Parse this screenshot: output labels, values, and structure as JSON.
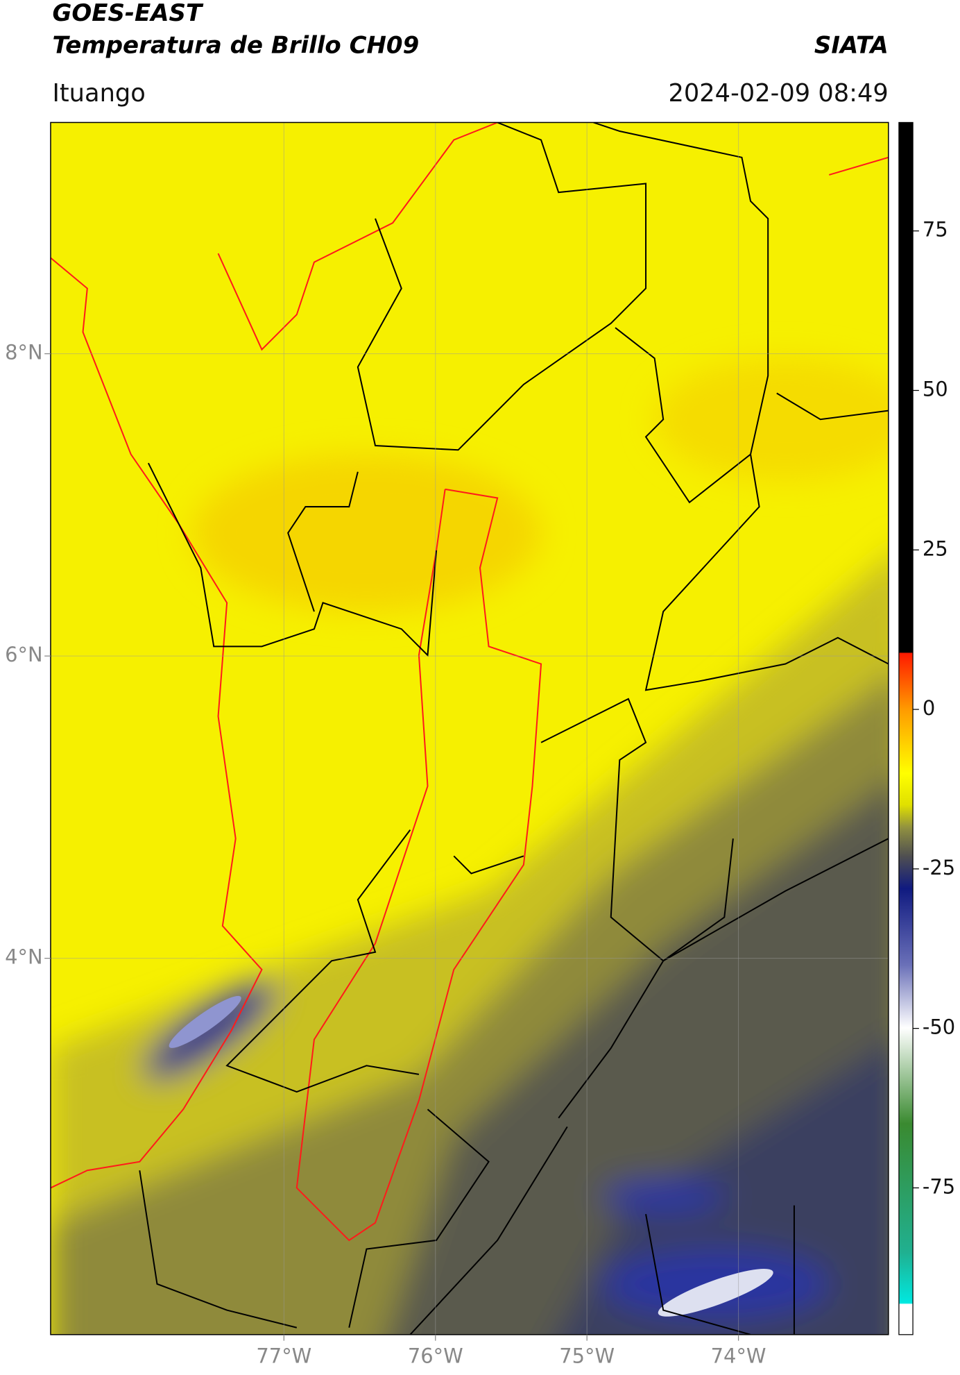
{
  "header": {
    "title": "GOES-EAST",
    "subtitle": "Temperatura de Brillo CH09",
    "source": "SIATA",
    "region": "Ituango",
    "timestamp": "2024-02-09 08:49"
  },
  "map": {
    "xlim": [
      -78.54,
      -73.01
    ],
    "ylim": [
      1.51,
      9.53
    ],
    "grid": true,
    "xticks": [
      {
        "value": -77,
        "label": "77°W"
      },
      {
        "value": -76,
        "label": "76°W"
      },
      {
        "value": -75,
        "label": "75°W"
      },
      {
        "value": -74,
        "label": "74°W"
      }
    ],
    "yticks": [
      {
        "value": 4,
        "label": "4°N"
      },
      {
        "value": 6,
        "label": "6°N"
      },
      {
        "value": 8,
        "label": "8°N"
      }
    ]
  },
  "colorbar": {
    "lim": [
      -98,
      92
    ],
    "ticks": [
      -75,
      -50,
      -25,
      0,
      25,
      50,
      75
    ]
  }
}
